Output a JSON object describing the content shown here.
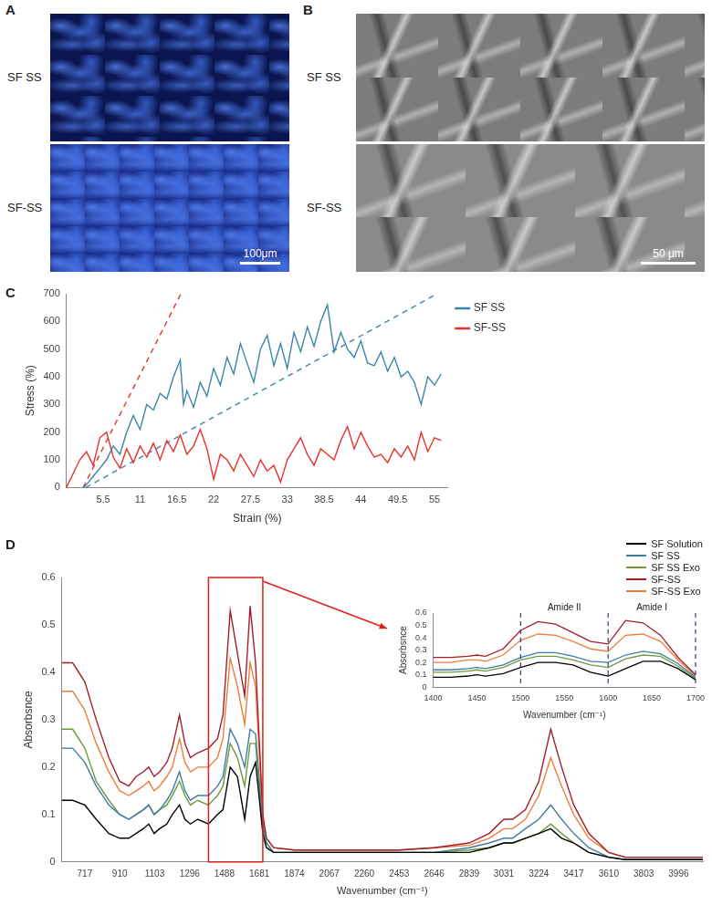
{
  "panels": [
    {
      "label": "A",
      "rows": [
        "SF SS",
        "SF-SS"
      ],
      "scale_bar": "100μm"
    },
    {
      "label": "B",
      "rows": [
        "SF SS",
        "SF-SS"
      ],
      "scale_bar": "50 μm"
    }
  ],
  "chart_data": [
    {
      "panel": "C",
      "type": "line",
      "x_label": "Strain (%)",
      "y_label": "Stress (%)",
      "xlim": [
        0,
        57
      ],
      "xticks": [
        5.5,
        11,
        16.5,
        22,
        27.5,
        33,
        38.5,
        44,
        49.5,
        55
      ],
      "ylim": [
        0,
        700
      ],
      "yticks": [
        0,
        100,
        200,
        300,
        400,
        500,
        600,
        700
      ],
      "grid": false,
      "legend": "right",
      "series": [
        {
          "name": "SF SS",
          "color": "#3a85a8",
          "line_style": "solid",
          "x": [
            2.5,
            3,
            4,
            5,
            6,
            7,
            8,
            9,
            10,
            11,
            12,
            13,
            14,
            15,
            16,
            17,
            17.5,
            18,
            19,
            20,
            21,
            22,
            23,
            24,
            25,
            26,
            27,
            28,
            29,
            30,
            31,
            32,
            33,
            34,
            35,
            36,
            37,
            38,
            39,
            40,
            41,
            42,
            43,
            44,
            45,
            46,
            47,
            48,
            49,
            50,
            51,
            52,
            53,
            54,
            55,
            56
          ],
          "values": [
            0,
            10,
            40,
            70,
            100,
            150,
            120,
            200,
            260,
            210,
            300,
            280,
            340,
            320,
            400,
            460,
            300,
            350,
            290,
            380,
            330,
            430,
            370,
            470,
            410,
            520,
            450,
            380,
            500,
            550,
            440,
            520,
            430,
            560,
            490,
            580,
            510,
            600,
            660,
            490,
            560,
            500,
            470,
            530,
            450,
            440,
            490,
            420,
            470,
            400,
            420,
            380,
            300,
            400,
            370,
            410
          ],
          "fit": {
            "line_style": "dashed",
            "x": [
              2.9,
              55.4
            ],
            "values": [
              0,
              700
            ]
          }
        },
        {
          "name": "SF-SS",
          "color": "#e8312a",
          "line_style": "solid",
          "x": [
            0,
            1,
            2,
            3,
            4,
            5,
            6,
            7,
            8,
            9,
            10,
            11,
            12,
            13,
            14,
            15,
            16,
            17,
            18,
            19,
            20,
            21,
            22,
            23,
            24,
            25,
            26,
            27,
            28,
            29,
            30,
            31,
            32,
            33,
            34,
            35,
            36,
            37,
            38,
            39,
            40,
            41,
            42,
            43,
            44,
            45,
            46,
            47,
            48,
            49,
            50,
            51,
            52,
            53,
            54,
            55,
            56
          ],
          "values": [
            0,
            50,
            100,
            130,
            80,
            180,
            200,
            110,
            70,
            140,
            90,
            150,
            110,
            160,
            100,
            170,
            130,
            190,
            120,
            150,
            210,
            140,
            30,
            120,
            100,
            60,
            120,
            80,
            40,
            100,
            60,
            80,
            20,
            100,
            140,
            180,
            120,
            80,
            140,
            120,
            100,
            170,
            220,
            140,
            200,
            150,
            110,
            120,
            90,
            140,
            110,
            150,
            100,
            200,
            130,
            180,
            170
          ],
          "fit": {
            "line_style": "dashed",
            "x": [
              2.5,
              17.1
            ],
            "values": [
              0,
              700
            ]
          }
        }
      ]
    },
    {
      "panel": "D",
      "type": "line",
      "x_label": "Wavenumber (cm⁻¹)",
      "y_label": "Absorbsnce",
      "xlim": [
        590,
        4130
      ],
      "xticks": [
        717,
        910,
        1103,
        1296,
        1488,
        1681,
        1874,
        2067,
        2260,
        2453,
        2646,
        2839,
        3031,
        3224,
        3417,
        3610,
        3803,
        3996
      ],
      "ylim": [
        0,
        0.6
      ],
      "yticks": [
        0,
        0.1,
        0.2,
        0.3,
        0.4,
        0.5,
        0.6
      ],
      "grid": false,
      "legend": "top right",
      "x": [
        590,
        650,
        717,
        780,
        850,
        910,
        960,
        1000,
        1040,
        1070,
        1100,
        1130,
        1170,
        1200,
        1240,
        1270,
        1300,
        1340,
        1400,
        1450,
        1480,
        1520,
        1560,
        1600,
        1630,
        1660,
        1700,
        1720,
        1760,
        1874,
        2067,
        2260,
        2453,
        2646,
        2839,
        2950,
        3031,
        3080,
        3150,
        3224,
        3290,
        3350,
        3417,
        3500,
        3610,
        3700,
        3803,
        3996,
        4130
      ],
      "series": [
        {
          "name": "SF Solution",
          "color": "#000000",
          "values": [
            0.13,
            0.13,
            0.12,
            0.09,
            0.06,
            0.05,
            0.05,
            0.06,
            0.07,
            0.08,
            0.06,
            0.07,
            0.08,
            0.1,
            0.12,
            0.09,
            0.08,
            0.09,
            0.08,
            0.1,
            0.11,
            0.2,
            0.18,
            0.09,
            0.18,
            0.21,
            0.06,
            0.03,
            0.02,
            0.02,
            0.02,
            0.02,
            0.02,
            0.02,
            0.02,
            0.03,
            0.04,
            0.04,
            0.05,
            0.06,
            0.07,
            0.05,
            0.04,
            0.02,
            0.01,
            0.005,
            0.005,
            0.005,
            0.005
          ]
        },
        {
          "name": "SF SS",
          "color": "#3e7ca6",
          "values": [
            0.24,
            0.24,
            0.21,
            0.16,
            0.12,
            0.1,
            0.09,
            0.1,
            0.11,
            0.12,
            0.1,
            0.11,
            0.13,
            0.15,
            0.19,
            0.15,
            0.13,
            0.14,
            0.14,
            0.16,
            0.18,
            0.28,
            0.25,
            0.2,
            0.28,
            0.27,
            0.08,
            0.04,
            0.02,
            0.02,
            0.02,
            0.02,
            0.02,
            0.02,
            0.03,
            0.04,
            0.05,
            0.05,
            0.07,
            0.09,
            0.12,
            0.09,
            0.06,
            0.03,
            0.01,
            0.005,
            0.005,
            0.005,
            0.005
          ]
        },
        {
          "name": "SF SS Exo",
          "color": "#6c9a3c",
          "values": [
            0.28,
            0.28,
            0.24,
            0.17,
            0.13,
            0.1,
            0.09,
            0.1,
            0.11,
            0.12,
            0.1,
            0.11,
            0.12,
            0.14,
            0.17,
            0.14,
            0.12,
            0.13,
            0.12,
            0.14,
            0.16,
            0.25,
            0.22,
            0.16,
            0.25,
            0.25,
            0.07,
            0.04,
            0.02,
            0.02,
            0.02,
            0.02,
            0.02,
            0.02,
            0.025,
            0.03,
            0.04,
            0.04,
            0.05,
            0.06,
            0.08,
            0.06,
            0.04,
            0.02,
            0.01,
            0.005,
            0.005,
            0.005,
            0.005
          ]
        },
        {
          "name": "SF-SS",
          "color": "#a31d2a",
          "values": [
            0.42,
            0.42,
            0.38,
            0.3,
            0.22,
            0.17,
            0.16,
            0.18,
            0.19,
            0.2,
            0.18,
            0.19,
            0.21,
            0.24,
            0.31,
            0.25,
            0.22,
            0.23,
            0.24,
            0.26,
            0.31,
            0.53,
            0.44,
            0.35,
            0.54,
            0.42,
            0.1,
            0.05,
            0.03,
            0.025,
            0.025,
            0.025,
            0.025,
            0.03,
            0.04,
            0.06,
            0.09,
            0.09,
            0.11,
            0.17,
            0.28,
            0.2,
            0.12,
            0.06,
            0.02,
            0.01,
            0.01,
            0.01,
            0.01
          ]
        },
        {
          "name": "SF-SS Exo",
          "color": "#ef7d3a",
          "values": [
            0.36,
            0.36,
            0.32,
            0.25,
            0.19,
            0.15,
            0.14,
            0.15,
            0.16,
            0.17,
            0.15,
            0.16,
            0.18,
            0.2,
            0.26,
            0.21,
            0.19,
            0.2,
            0.2,
            0.22,
            0.26,
            0.43,
            0.37,
            0.29,
            0.42,
            0.37,
            0.09,
            0.05,
            0.03,
            0.025,
            0.025,
            0.025,
            0.025,
            0.03,
            0.035,
            0.05,
            0.07,
            0.07,
            0.09,
            0.14,
            0.22,
            0.16,
            0.1,
            0.05,
            0.02,
            0.01,
            0.01,
            0.01,
            0.01
          ]
        }
      ]
    },
    {
      "type": "line",
      "x_label": "Wavenumber (cm⁻¹)",
      "y_label": "Absorbsnce",
      "xlim": [
        1400,
        1700
      ],
      "xticks": [
        1400,
        1450,
        1500,
        1550,
        1600,
        1650,
        1700
      ],
      "ylim": [
        0,
        0.6
      ],
      "yticks": [
        0,
        0.1,
        0.2,
        0.3,
        0.4,
        0.5,
        0.6
      ],
      "grid": false,
      "reference_lines": [
        1500,
        1600,
        1700
      ],
      "annotations": [
        "Amide II",
        "Amide I"
      ],
      "x": [
        1400,
        1420,
        1440,
        1450,
        1460,
        1480,
        1500,
        1520,
        1540,
        1560,
        1580,
        1600,
        1620,
        1640,
        1660,
        1680,
        1700
      ],
      "series": [
        {
          "name": "SF Solution",
          "color": "#000000",
          "values": [
            0.08,
            0.08,
            0.09,
            0.1,
            0.09,
            0.11,
            0.16,
            0.2,
            0.2,
            0.18,
            0.12,
            0.09,
            0.15,
            0.21,
            0.21,
            0.15,
            0.06
          ]
        },
        {
          "name": "SF SS",
          "color": "#3e7ca6",
          "values": [
            0.14,
            0.14,
            0.15,
            0.16,
            0.15,
            0.18,
            0.24,
            0.28,
            0.28,
            0.25,
            0.21,
            0.2,
            0.26,
            0.29,
            0.27,
            0.19,
            0.08
          ]
        },
        {
          "name": "SF SS Exo",
          "color": "#6c9a3c",
          "values": [
            0.12,
            0.12,
            0.13,
            0.14,
            0.13,
            0.16,
            0.22,
            0.25,
            0.25,
            0.22,
            0.18,
            0.16,
            0.23,
            0.26,
            0.25,
            0.17,
            0.07
          ]
        },
        {
          "name": "SF-SS",
          "color": "#a31d2a",
          "values": [
            0.24,
            0.24,
            0.25,
            0.26,
            0.25,
            0.31,
            0.46,
            0.53,
            0.51,
            0.44,
            0.37,
            0.35,
            0.54,
            0.52,
            0.42,
            0.24,
            0.1
          ]
        },
        {
          "name": "SF-SS Exo",
          "color": "#ef7d3a",
          "values": [
            0.2,
            0.2,
            0.22,
            0.22,
            0.21,
            0.26,
            0.38,
            0.43,
            0.42,
            0.37,
            0.31,
            0.29,
            0.42,
            0.43,
            0.37,
            0.22,
            0.09
          ]
        }
      ]
    }
  ]
}
